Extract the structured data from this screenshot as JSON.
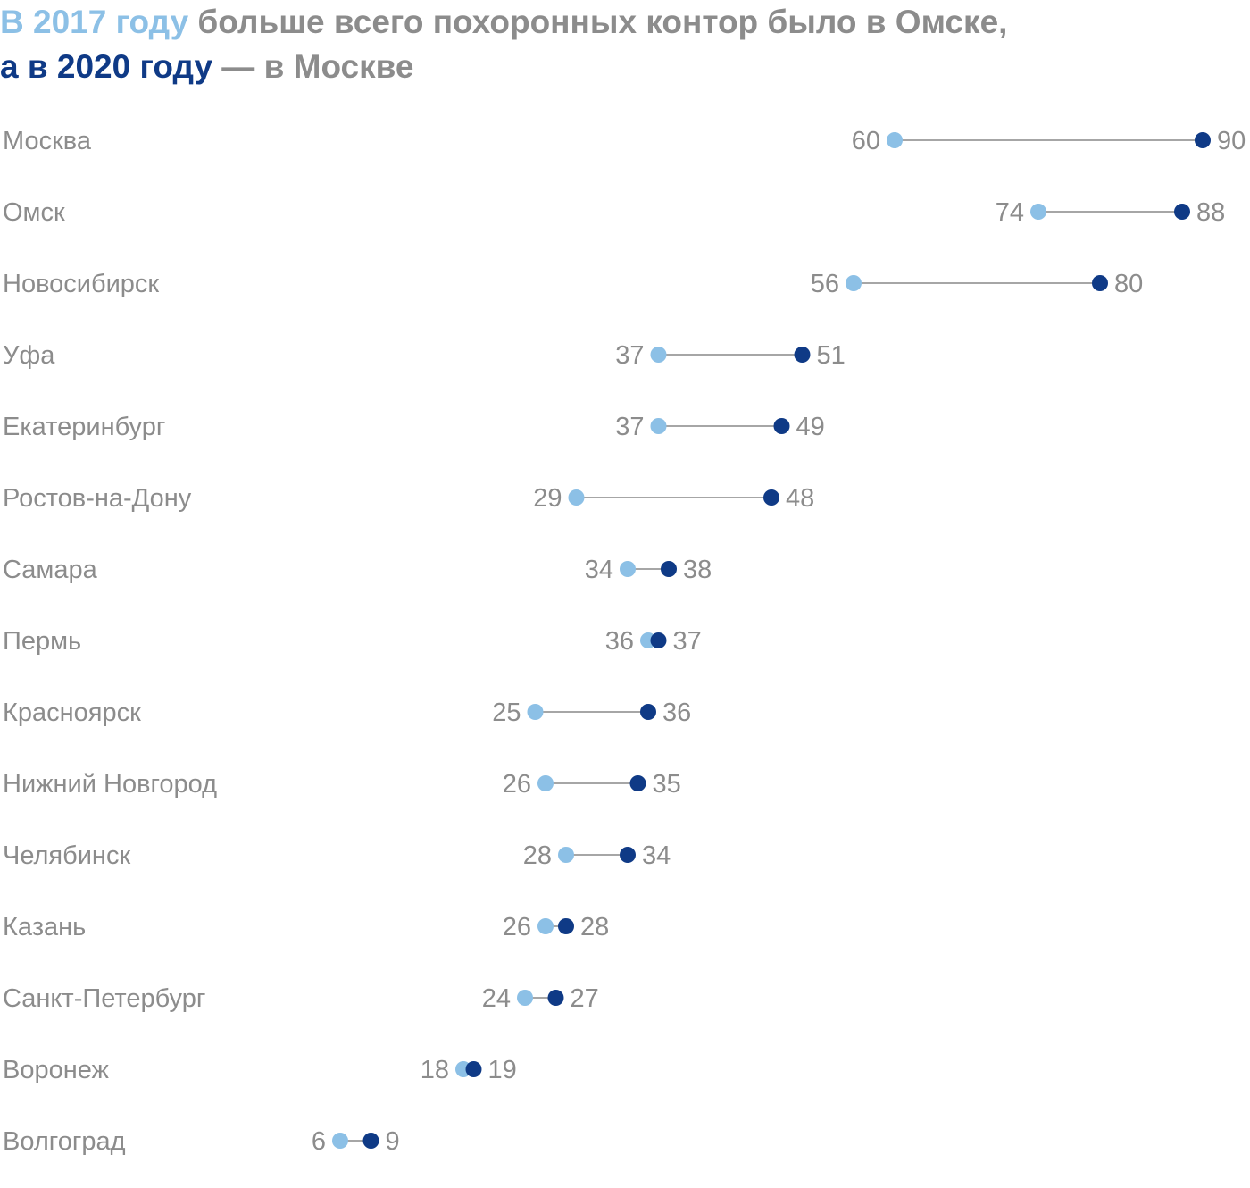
{
  "title": {
    "line1_highlight": "В 2017 году",
    "line1_rest": " больше всего похоронных контор было в Омске,",
    "line2_highlight": "а в 2020 году",
    "line2_rest": " — в Москве"
  },
  "colors": {
    "year_2017": "#8cc0e6",
    "year_2020": "#0f3a86",
    "connector": "#a6a6a6",
    "text": "#8c8c8c"
  },
  "chart_data": {
    "type": "dumbbell",
    "series": [
      {
        "name": "2017",
        "color": "#8cc0e6"
      },
      {
        "name": "2020",
        "color": "#0f3a86"
      }
    ],
    "categories": [
      "Москва",
      "Омск",
      "Новосибирск",
      "Уфа",
      "Екатеринбург",
      "Ростов-на-Дону",
      "Самара",
      "Пермь",
      "Красноярск",
      "Нижний Новгород",
      "Челябинск",
      "Казань",
      "Санкт-Петербург",
      "Воронеж",
      "Волгоград"
    ],
    "values_2017": [
      60,
      74,
      56,
      37,
      37,
      29,
      34,
      36,
      25,
      26,
      28,
      26,
      24,
      18,
      6
    ],
    "values_2020": [
      90,
      88,
      80,
      51,
      49,
      48,
      38,
      37,
      36,
      35,
      34,
      28,
      27,
      19,
      9
    ],
    "grid": false
  }
}
